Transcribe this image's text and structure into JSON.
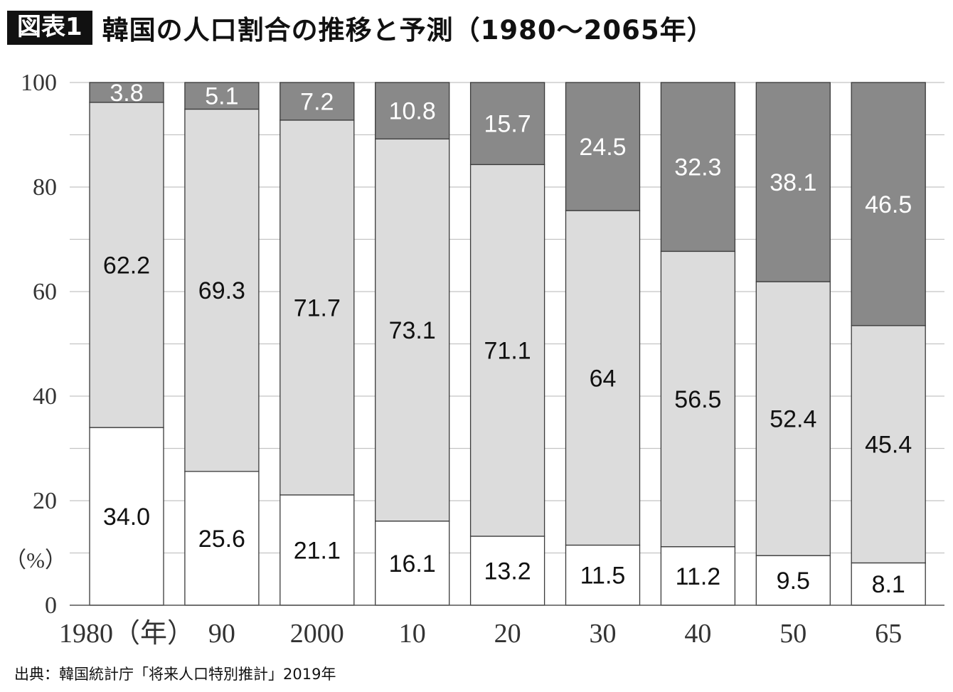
{
  "header": {
    "badge": "図表1",
    "title": "韓国の人口割合の推移と予測（1980〜2065年）"
  },
  "source": "出典：韓国統計庁「将来人口特別推計」2019年",
  "unit_label": "（%）",
  "colors": {
    "young": "#ffffff",
    "working": "#dcdcdc",
    "elderly": "#898989",
    "grid": "#c4c4c4",
    "frame": "#555555"
  },
  "chart_data": {
    "type": "bar",
    "stacked": true,
    "categories": [
      "1980（年）",
      "90",
      "2000",
      "10",
      "20",
      "30",
      "40",
      "50",
      "65"
    ],
    "ylim": [
      0,
      100
    ],
    "y_ticks": [
      0,
      20,
      40,
      60,
      80,
      100
    ],
    "grid": true,
    "series": [
      {
        "values": [
          34.0,
          25.6,
          21.1,
          16.1,
          13.2,
          11.5,
          11.2,
          9.5,
          8.1
        ],
        "labels": [
          "34.0",
          "25.6",
          "21.1",
          "16.1",
          "13.2",
          "11.5",
          "11.2",
          "9.5",
          "8.1"
        ]
      },
      {
        "values": [
          62.2,
          69.3,
          71.7,
          73.1,
          71.1,
          64,
          56.5,
          52.4,
          45.4
        ],
        "labels": [
          "62.2",
          "69.3",
          "71.7",
          "73.1",
          "71.1",
          "64",
          "56.5",
          "52.4",
          "45.4"
        ]
      },
      {
        "values": [
          3.8,
          5.1,
          7.2,
          10.8,
          15.7,
          24.5,
          32.3,
          38.1,
          46.5
        ],
        "labels": [
          "3.8",
          "5.1",
          "7.2",
          "10.8",
          "15.7",
          "24.5",
          "32.3",
          "38.1",
          "46.5"
        ]
      }
    ]
  }
}
